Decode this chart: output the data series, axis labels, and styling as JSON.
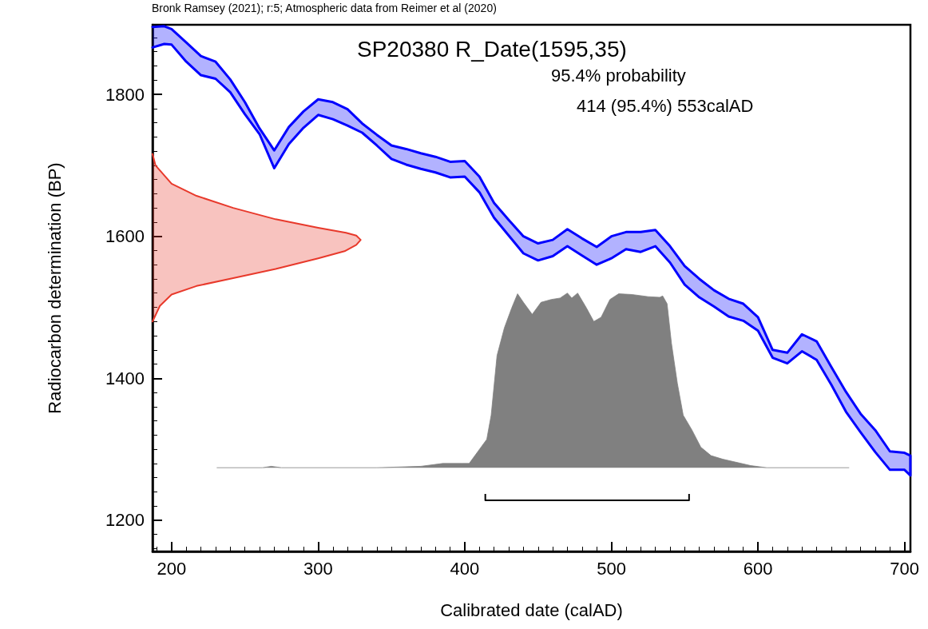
{
  "chart_data": {
    "type": "area",
    "title": "SP20380 R_Date(1595,35)",
    "xlabel": "Calibrated date (calAD)",
    "ylabel": "Radiocarbon determination (BP)",
    "annotations": [
      "Bronk Ramsey (2021); r:5; Atmospheric data from Reimer et al (2020)",
      "95.4% probability",
      "414 (95.4%) 553calAD"
    ],
    "xlim": [
      187,
      704
    ],
    "ylim": [
      1156,
      1898
    ],
    "xticks": [
      {
        "value": 190,
        "label": null
      },
      200,
      {
        "value": 210,
        "label": null
      },
      {
        "value": 220,
        "label": null
      },
      {
        "value": 230,
        "label": null
      },
      {
        "value": 240,
        "label": null
      },
      {
        "value": 250,
        "label": null
      },
      {
        "value": 260,
        "label": null
      },
      {
        "value": 270,
        "label": null
      },
      {
        "value": 280,
        "label": null
      },
      {
        "value": 290,
        "label": null
      },
      300,
      {
        "value": 310,
        "label": null
      },
      {
        "value": 320,
        "label": null
      },
      {
        "value": 330,
        "label": null
      },
      {
        "value": 340,
        "label": null
      },
      {
        "value": 350,
        "label": null
      },
      {
        "value": 360,
        "label": null
      },
      {
        "value": 370,
        "label": null
      },
      {
        "value": 380,
        "label": null
      },
      {
        "value": 390,
        "label": null
      },
      400,
      {
        "value": 410,
        "label": null
      },
      {
        "value": 420,
        "label": null
      },
      {
        "value": 430,
        "label": null
      },
      {
        "value": 440,
        "label": null
      },
      {
        "value": 450,
        "label": null
      },
      {
        "value": 460,
        "label": null
      },
      {
        "value": 470,
        "label": null
      },
      {
        "value": 480,
        "label": null
      },
      {
        "value": 490,
        "label": null
      },
      500,
      {
        "value": 510,
        "label": null
      },
      {
        "value": 520,
        "label": null
      },
      {
        "value": 530,
        "label": null
      },
      {
        "value": 540,
        "label": null
      },
      {
        "value": 550,
        "label": null
      },
      {
        "value": 560,
        "label": null
      },
      {
        "value": 570,
        "label": null
      },
      {
        "value": 580,
        "label": null
      },
      {
        "value": 590,
        "label": null
      },
      600,
      {
        "value": 610,
        "label": null
      },
      {
        "value": 620,
        "label": null
      },
      {
        "value": 630,
        "label": null
      },
      {
        "value": 640,
        "label": null
      },
      {
        "value": 650,
        "label": null
      },
      {
        "value": 660,
        "label": null
      },
      {
        "value": 670,
        "label": null
      },
      {
        "value": 680,
        "label": null
      },
      {
        "value": 690,
        "label": null
      },
      700
    ],
    "yticks": [
      {
        "value": 1160,
        "label": null
      },
      {
        "value": 1180,
        "label": null
      },
      1200,
      {
        "value": 1220,
        "label": null
      },
      {
        "value": 1240,
        "label": null
      },
      {
        "value": 1260,
        "label": null
      },
      {
        "value": 1280,
        "label": null
      },
      {
        "value": 1300,
        "label": null
      },
      {
        "value": 1320,
        "label": null
      },
      {
        "value": 1340,
        "label": null
      },
      {
        "value": 1360,
        "label": null
      },
      {
        "value": 1380,
        "label": null
      },
      1400,
      {
        "value": 1420,
        "label": null
      },
      {
        "value": 1440,
        "label": null
      },
      {
        "value": 1460,
        "label": null
      },
      {
        "value": 1480,
        "label": null
      },
      {
        "value": 1500,
        "label": null
      },
      {
        "value": 1520,
        "label": null
      },
      {
        "value": 1540,
        "label": null
      },
      {
        "value": 1560,
        "label": null
      },
      {
        "value": 1580,
        "label": null
      },
      1600,
      {
        "value": 1620,
        "label": null
      },
      {
        "value": 1640,
        "label": null
      },
      {
        "value": 1660,
        "label": null
      },
      {
        "value": 1680,
        "label": null
      },
      {
        "value": 1700,
        "label": null
      },
      {
        "value": 1720,
        "label": null
      },
      {
        "value": 1740,
        "label": null
      },
      {
        "value": 1760,
        "label": null
      },
      {
        "value": 1780,
        "label": null
      },
      1800,
      {
        "value": 1820,
        "label": null
      },
      {
        "value": 1840,
        "label": null
      },
      {
        "value": 1860,
        "label": null
      },
      {
        "value": 1880,
        "label": null
      }
    ],
    "series": [
      {
        "color": "#0000ff",
        "x": [
          187,
          195,
          200,
          210,
          220,
          230,
          240,
          250,
          260,
          270,
          280,
          290,
          300,
          310,
          320,
          330,
          340,
          350,
          360,
          370,
          380,
          390,
          400,
          410,
          420,
          430,
          440,
          450,
          460,
          470,
          480,
          490,
          500,
          510,
          520,
          530,
          540,
          550,
          560,
          570,
          580,
          590,
          600,
          610,
          620,
          630,
          640,
          650,
          660,
          670,
          680,
          690,
          700,
          704,
          704,
          700,
          690,
          680,
          670,
          660,
          650,
          640,
          630,
          620,
          610,
          600,
          590,
          580,
          570,
          560,
          550,
          540,
          530,
          520,
          510,
          500,
          490,
          480,
          470,
          460,
          450,
          440,
          430,
          420,
          410,
          400,
          390,
          380,
          370,
          360,
          350,
          340,
          330,
          320,
          310,
          300,
          290,
          280,
          270,
          260,
          250,
          240,
          230,
          220,
          210,
          200,
          195,
          187
        ],
        "values": [
          1895,
          1896,
          1892,
          1873,
          1854,
          1846,
          1821,
          1789,
          1752,
          1721,
          1754,
          1776,
          1793,
          1789,
          1779,
          1759,
          1743,
          1728,
          1723,
          1717,
          1712,
          1705,
          1706,
          1684,
          1647,
          1623,
          1600,
          1590,
          1595,
          1610,
          1597,
          1585,
          1600,
          1606,
          1606,
          1609,
          1586,
          1558,
          1540,
          1524,
          1512,
          1505,
          1486,
          1440,
          1436,
          1462,
          1452,
          1416,
          1381,
          1350,
          1327,
          1297,
          1295,
          1291,
          1263,
          1271,
          1271,
          1296,
          1324,
          1353,
          1391,
          1426,
          1438,
          1421,
          1429,
          1467,
          1481,
          1487,
          1501,
          1514,
          1532,
          1563,
          1586,
          1578,
          1582,
          1569,
          1560,
          1573,
          1586,
          1572,
          1566,
          1576,
          1601,
          1626,
          1662,
          1684,
          1683,
          1690,
          1695,
          1701,
          1709,
          1728,
          1746,
          1756,
          1765,
          1771,
          1753,
          1730,
          1696,
          1744,
          1772,
          1803,
          1822,
          1827,
          1846,
          1870,
          1871,
          1866
        ]
      },
      {
        "color": "#e8392b",
        "x": [
          187,
          189,
          200,
          217,
          242,
          271,
          300,
          319,
          326,
          329,
          326,
          318,
          300,
          271,
          242,
          217,
          200,
          192,
          187
        ],
        "values": [
          1716,
          1700,
          1674,
          1657,
          1640,
          1624,
          1612,
          1605,
          1601,
          1595,
          1588,
          1579,
          1569,
          1554,
          1541,
          1530,
          1518,
          1502,
          1480
        ]
      },
      {
        "color": "#808080",
        "x": [
          231,
          262,
          268,
          275,
          340,
          370,
          385,
          398,
          403,
          409,
          415,
          418,
          422,
          427,
          432,
          436,
          440,
          446,
          452,
          459,
          465,
          470,
          473,
          477,
          483,
          488,
          493,
          499,
          505,
          514,
          525,
          533,
          535,
          538,
          541,
          545,
          549,
          555,
          561,
          568,
          576,
          595,
          606,
          662
        ],
        "values": [
          1274,
          1274,
          1276,
          1274,
          1274,
          1276,
          1280,
          1280,
          1280,
          1297,
          1314,
          1348,
          1432,
          1471,
          1499,
          1519,
          1507,
          1490,
          1507,
          1511,
          1513,
          1520,
          1513,
          1520,
          1499,
          1480,
          1486,
          1511,
          1519,
          1518,
          1515,
          1514,
          1516,
          1505,
          1449,
          1393,
          1348,
          1327,
          1303,
          1291,
          1286,
          1277,
          1274,
          1274
        ]
      },
      {
        "type": "line",
        "color": "#000000",
        "x": [
          414,
          414,
          553,
          553
        ],
        "values": [
          1237,
          1228,
          1228,
          1237
        ]
      }
    ]
  }
}
